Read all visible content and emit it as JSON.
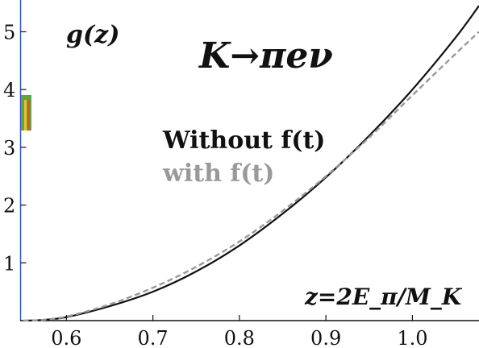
{
  "chart_data": {
    "type": "line",
    "title": "K→πeν",
    "ylabel": "g(z)",
    "xlabel": "z=2E_π/M_K",
    "xlim": [
      0.547,
      1.077
    ],
    "ylim": [
      0,
      5.55
    ],
    "x_ticks": [
      "0.6",
      "0.7",
      "0.8",
      "0.9",
      "1.0"
    ],
    "y_ticks": [
      "1",
      "2",
      "3",
      "4",
      "5"
    ],
    "grid": false,
    "legend": {
      "placement": "center"
    },
    "series": [
      {
        "name": "Without f(t)",
        "color": "#111111",
        "style": "solid",
        "x": [
          0.55,
          0.57,
          0.6,
          0.65,
          0.7,
          0.75,
          0.8,
          0.85,
          0.9,
          0.95,
          1.0,
          1.05,
          1.077
        ],
        "y": [
          0.0,
          0.01,
          0.06,
          0.25,
          0.5,
          0.85,
          1.3,
          1.85,
          2.48,
          3.2,
          4.0,
          4.9,
          5.45
        ]
      },
      {
        "name": "with f(t)",
        "color": "#999999",
        "style": "dashed",
        "x": [
          0.55,
          0.57,
          0.6,
          0.65,
          0.7,
          0.75,
          0.8,
          0.85,
          0.9,
          0.95,
          1.0,
          1.05,
          1.077
        ],
        "y": [
          0.0,
          0.01,
          0.07,
          0.28,
          0.57,
          0.93,
          1.37,
          1.9,
          2.5,
          3.17,
          3.9,
          4.62,
          5.0
        ]
      }
    ]
  }
}
